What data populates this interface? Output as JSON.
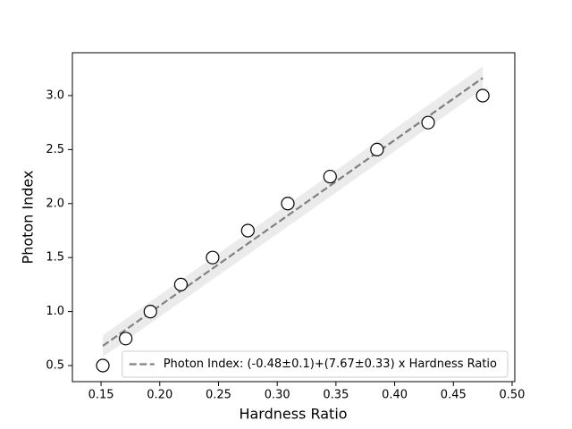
{
  "chart_data": {
    "type": "scatter",
    "x_label": "Hardness Ratio",
    "y_label": "Photon Index",
    "xlim": [
      0.1256,
      0.5023
    ],
    "ylim": [
      0.351,
      3.397
    ],
    "xticks": [
      0.15,
      {
        "value": 0.2,
        "label": "0.20"
      },
      0.25,
      {
        "value": 0.3,
        "label": "0.30"
      },
      0.35,
      {
        "value": 0.4,
        "label": "0.40"
      },
      0.45,
      {
        "value": 0.5,
        "label": "0.50"
      }
    ],
    "yticks": [
      0.5,
      {
        "value": 1,
        "label": "1.0"
      },
      1.5,
      {
        "value": 2,
        "label": "2.0"
      },
      2.5,
      {
        "value": 3,
        "label": "3.0"
      }
    ],
    "grid": false,
    "legend": "lower right",
    "series": [
      {
        "kind": "scatter",
        "color": "#000000",
        "x": [
          0.1515,
          0.171,
          0.192,
          0.218,
          0.245,
          0.275,
          0.309,
          0.345,
          0.385,
          0.4285,
          0.475
        ],
        "values": [
          0.5,
          0.75,
          1.0,
          1.25,
          1.5,
          1.75,
          2.0,
          2.25,
          2.5,
          2.75,
          3.0
        ]
      },
      {
        "kind": "fit",
        "name": "Photon Index: (-0.48±0.1)+(7.67±0.33) x Hardness Ratio",
        "color": "#808080",
        "band_color": "#ebebeb",
        "x": [
          0.1515,
          0.475
        ],
        "values": [
          0.682,
          3.163
        ],
        "lower": [
          0.58,
          3.06
        ],
        "upper": [
          0.78,
          3.27
        ]
      }
    ]
  }
}
